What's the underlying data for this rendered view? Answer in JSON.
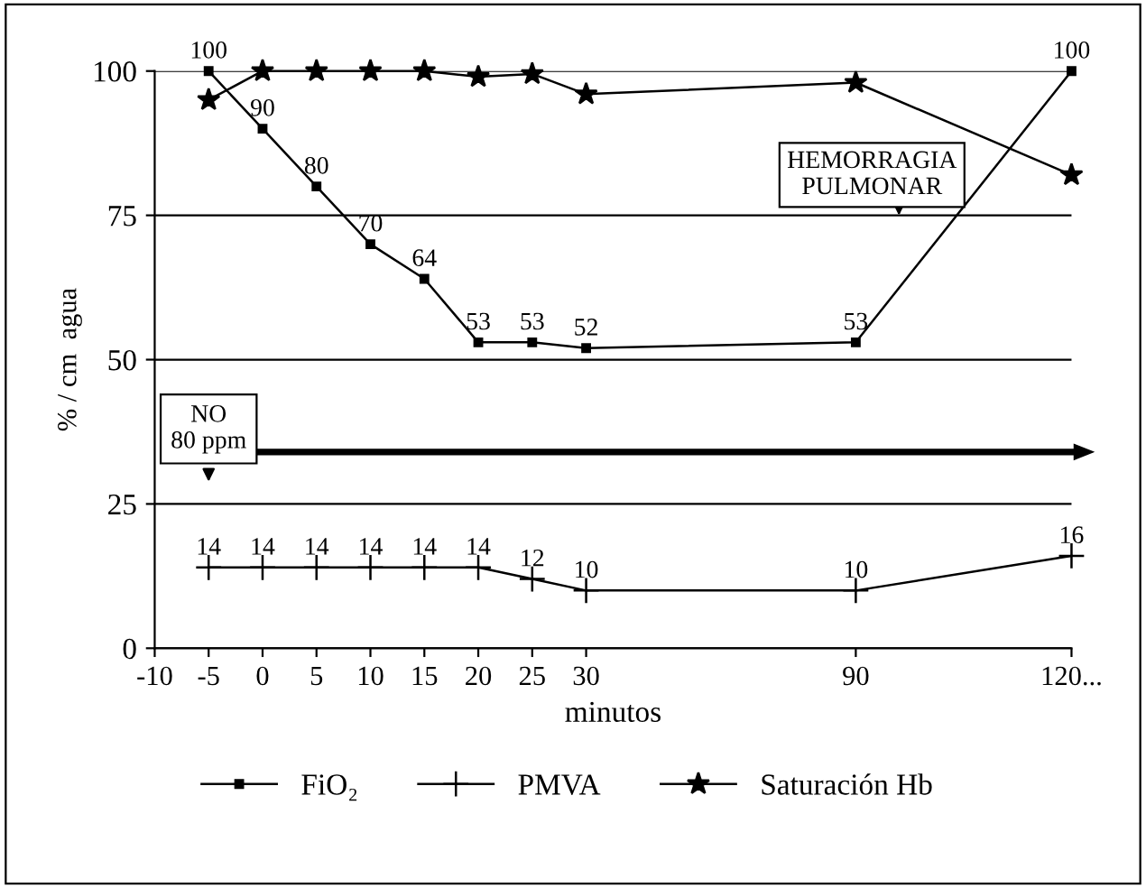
{
  "chart_data": {
    "type": "line",
    "xlabel": "minutos",
    "ylabel": "% / cm  agua",
    "categories": [
      "-10",
      "-5",
      "0",
      "5",
      "10",
      "15",
      "20",
      "25",
      "30",
      null,
      null,
      null,
      null,
      "90",
      null,
      null,
      null,
      "120..."
    ],
    "series": [
      {
        "name": "FiO₂",
        "color": "#000000",
        "marker": "square",
        "values": [
          null,
          100,
          90,
          80,
          70,
          64,
          53,
          53,
          52,
          null,
          null,
          null,
          null,
          53,
          null,
          null,
          null,
          100
        ],
        "value_labels": [
          null,
          "100",
          "90",
          "80",
          "70",
          "64",
          "53",
          "53",
          "52",
          null,
          null,
          null,
          null,
          "53",
          null,
          null,
          null,
          "100"
        ]
      },
      {
        "name": "PMVA",
        "color": "#000000",
        "marker": "cross",
        "values": [
          null,
          14,
          14,
          14,
          14,
          14,
          14,
          12,
          10,
          null,
          null,
          null,
          null,
          10,
          null,
          null,
          null,
          16
        ],
        "value_labels": [
          null,
          "14",
          "14",
          "14",
          "14",
          "14",
          "14",
          "12",
          "10",
          null,
          null,
          null,
          null,
          "10",
          null,
          null,
          null,
          "16"
        ]
      },
      {
        "name": "Saturación Hb",
        "color": "#000000",
        "marker": "star",
        "values": [
          null,
          95,
          100,
          100,
          100,
          100,
          99,
          99.5,
          96,
          null,
          null,
          null,
          null,
          98,
          null,
          null,
          null,
          82
        ]
      }
    ],
    "ylim": [
      0,
      100
    ],
    "yticks": [
      0,
      25,
      50,
      75,
      100
    ],
    "grid": "y",
    "legend": "bottom",
    "line_style": "solid",
    "annotations": [
      "HEMORRAGIA\nPULMONAR",
      "NO\n80 ppm"
    ]
  }
}
